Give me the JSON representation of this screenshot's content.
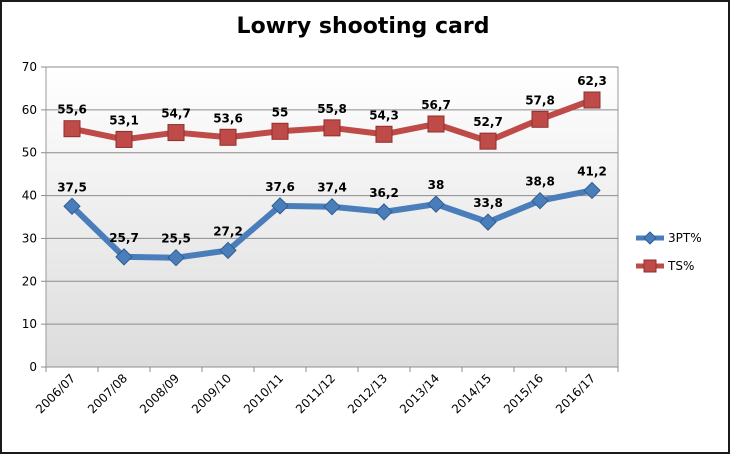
{
  "chart_data": {
    "type": "line",
    "title": "Lowry shooting card",
    "xlabel": "",
    "ylabel": "",
    "ylim": [
      0,
      70
    ],
    "yticks": [
      0,
      10,
      20,
      30,
      40,
      50,
      60,
      70
    ],
    "grid": true,
    "legend_position": "right",
    "categories": [
      "2006/07",
      "2007/08",
      "2008/09",
      "2009/10",
      "2010/11",
      "2011/12",
      "2012/13",
      "2013/14",
      "2014/15",
      "2015/16",
      "2016/17"
    ],
    "series": [
      {
        "name": "3PT%",
        "marker": "diamond",
        "color": "#4a7ebb",
        "values": [
          37.5,
          25.7,
          25.5,
          27.2,
          37.6,
          37.4,
          36.2,
          38,
          33.8,
          38.8,
          41.2
        ],
        "labels": [
          "37,5",
          "25,7",
          "25,5",
          "27,2",
          "37,6",
          "37,4",
          "36,2",
          "38",
          "33,8",
          "38,8",
          "41,2"
        ]
      },
      {
        "name": "TS%",
        "marker": "square",
        "color": "#be4b48",
        "values": [
          55.6,
          53.1,
          54.7,
          53.6,
          55,
          55.8,
          54.3,
          56.7,
          52.7,
          57.8,
          62.3
        ],
        "labels": [
          "55,6",
          "53,1",
          "54,7",
          "53,6",
          "55",
          "55,8",
          "54,3",
          "56,7",
          "52,7",
          "57,8",
          "62,3"
        ]
      }
    ]
  }
}
